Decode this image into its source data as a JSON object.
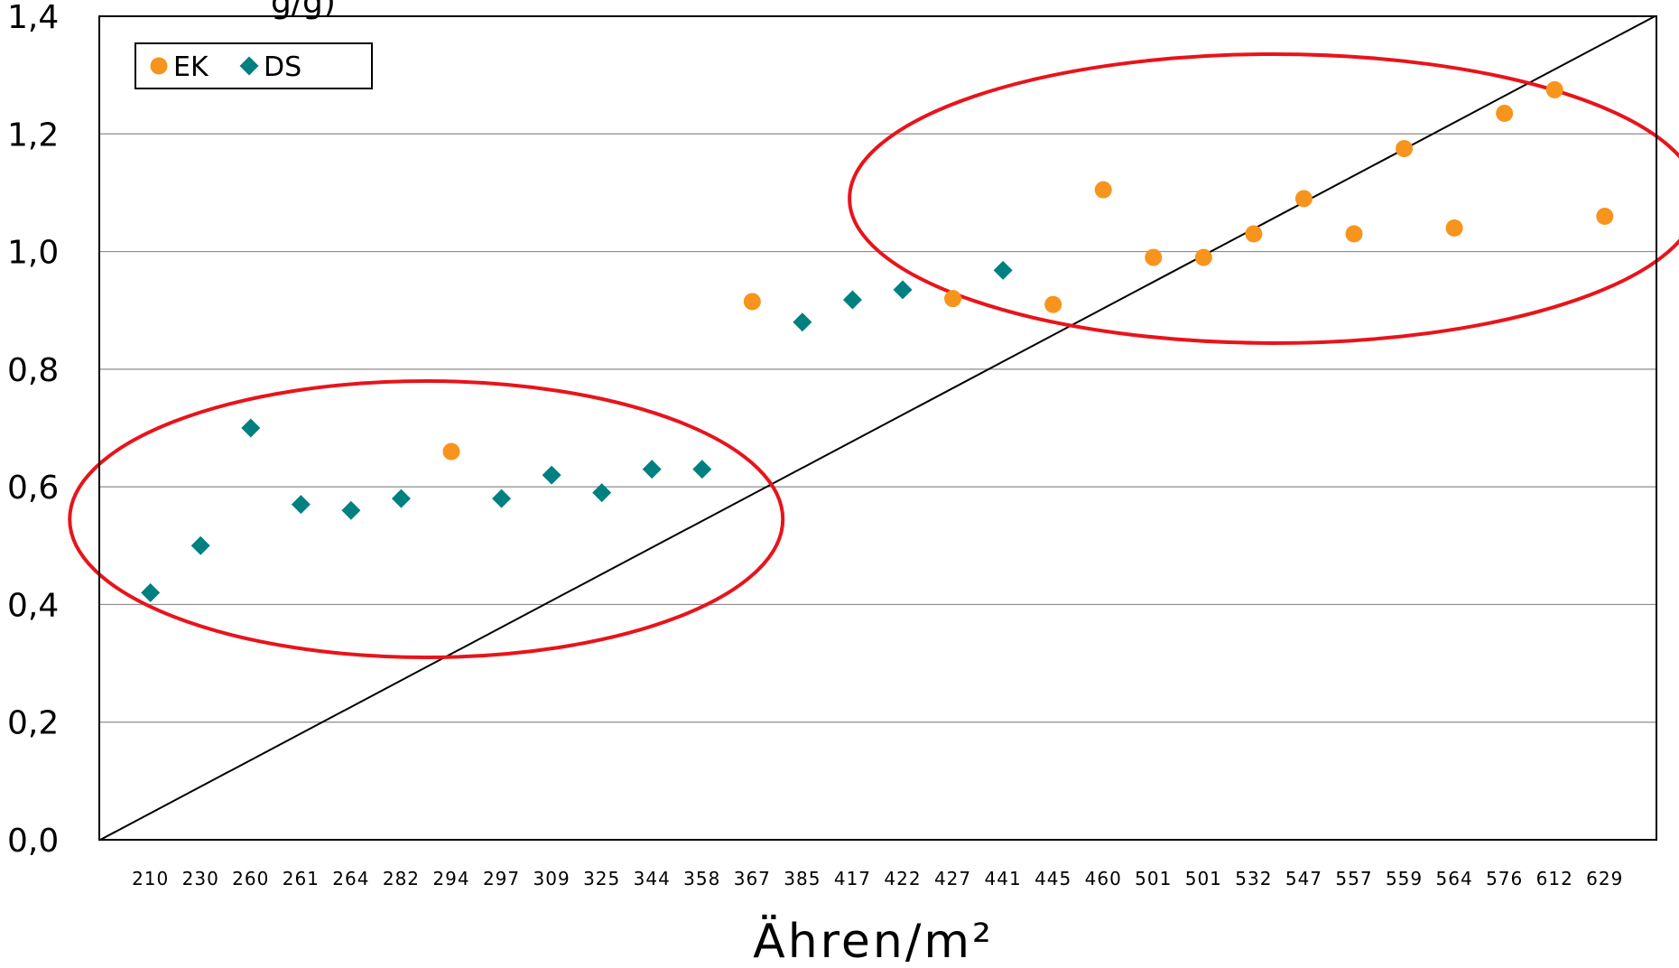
{
  "chart_data": {
    "type": "scatter",
    "title": "",
    "ylabel_partial": "g/g)",
    "xlabel": "Ähren/m²",
    "categories": [
      "210",
      "230",
      "260",
      "261",
      "264",
      "282",
      "294",
      "297",
      "309",
      "325",
      "344",
      "358",
      "367",
      "385",
      "417",
      "422",
      "427",
      "441",
      "445",
      "460",
      "501",
      "501",
      "532",
      "547",
      "557",
      "559",
      "564",
      "576",
      "612",
      "629"
    ],
    "ylim": [
      0,
      1.4
    ],
    "y_ticks": [
      "0,0",
      "0,2",
      "0,4",
      "0,6",
      "0,8",
      "1,0",
      "1,2",
      "1,4"
    ],
    "grid": "horizontal",
    "legend_position": "top-left",
    "series": [
      {
        "name": "EK",
        "marker": "circle",
        "color": "#F7941D",
        "points": [
          {
            "x": "294",
            "y": 0.66
          },
          {
            "x": "367",
            "y": 0.915
          },
          {
            "x": "427",
            "y": 0.92
          },
          {
            "x": "445",
            "y": 0.91
          },
          {
            "x": "460",
            "y": 1.105
          },
          {
            "x": "501",
            "y": 0.99,
            "index": 20
          },
          {
            "x": "501",
            "y": 0.99,
            "index": 21
          },
          {
            "x": "532",
            "y": 1.03
          },
          {
            "x": "547",
            "y": 1.09
          },
          {
            "x": "557",
            "y": 1.03
          },
          {
            "x": "559",
            "y": 1.175
          },
          {
            "x": "564",
            "y": 1.04
          },
          {
            "x": "576",
            "y": 1.235
          },
          {
            "x": "612",
            "y": 1.275
          },
          {
            "x": "629",
            "y": 1.06
          }
        ]
      },
      {
        "name": "DS",
        "marker": "diamond",
        "color": "#008080",
        "points": [
          {
            "x": "210",
            "y": 0.42
          },
          {
            "x": "230",
            "y": 0.5
          },
          {
            "x": "260",
            "y": 0.7
          },
          {
            "x": "261",
            "y": 0.57
          },
          {
            "x": "264",
            "y": 0.56
          },
          {
            "x": "282",
            "y": 0.58
          },
          {
            "x": "297",
            "y": 0.58
          },
          {
            "x": "309",
            "y": 0.62
          },
          {
            "x": "325",
            "y": 0.59
          },
          {
            "x": "344",
            "y": 0.63
          },
          {
            "x": "358",
            "y": 0.63
          },
          {
            "x": "385",
            "y": 0.88
          },
          {
            "x": "417",
            "y": 0.918
          },
          {
            "x": "422",
            "y": 0.935
          },
          {
            "x": "441",
            "y": 0.968
          }
        ]
      }
    ],
    "trend_line": {
      "color": "#000000",
      "from": {
        "x_index": -1,
        "y": 0
      },
      "to": {
        "x_index": 30,
        "y": 1.4
      }
    },
    "annotations": [
      {
        "shape": "ellipse",
        "color": "#E8141B",
        "center_x_index": 5.5,
        "center_y": 0.545,
        "note_radius_x_categories": 7,
        "note_radius_y": 0.28
      },
      {
        "shape": "ellipse",
        "color": "#E8141B",
        "center_x_index": 22.4,
        "center_y": 1.09,
        "note_radius_x_categories": 8.4,
        "note_radius_y": 0.29
      }
    ]
  }
}
